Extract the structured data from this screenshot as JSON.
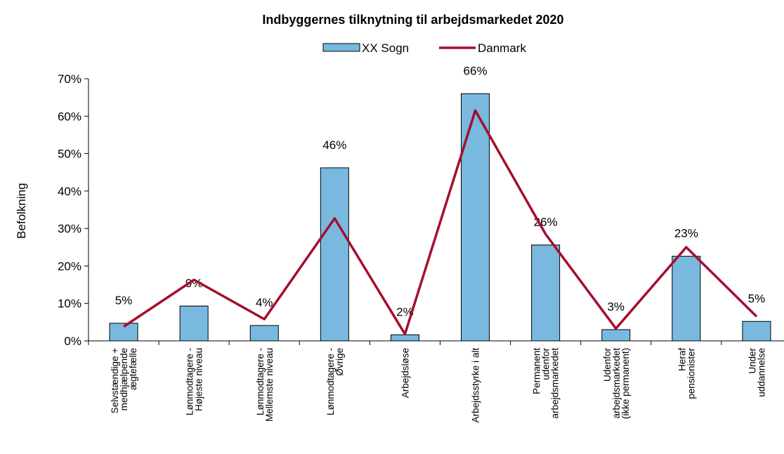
{
  "chart_data": {
    "type": "bar_line",
    "title": "Indbyggernes tilknytning til arbejdsmarkedet 2020",
    "ylabel": "Befolkning",
    "categories": [
      [
        "Selvstændige +",
        "medhjælpende",
        "ægtefælle"
      ],
      [
        "Lønmodtagere -",
        "Højeste niveau"
      ],
      [
        "Lønmodtagere -",
        "Mellemste niveau"
      ],
      [
        "Lønmodtagere -",
        "Øvrige"
      ],
      [
        "Arbejdsløse"
      ],
      [
        "Arbejdsstyrke i alt"
      ],
      [
        "Permanent",
        "udenfor",
        "arbejdsmarkedet"
      ],
      [
        "Udenfor",
        "arbejdsmarkedet",
        "(ikke permanent)"
      ],
      [
        "Heraf",
        "pensionister"
      ],
      [
        "Under",
        "uddannelse"
      ]
    ],
    "series": [
      {
        "name": "XX Sogn",
        "type": "bar",
        "color": "#79b9e0",
        "values": [
          4.7,
          9.3,
          4.1,
          46.2,
          1.6,
          66,
          25.6,
          3.0,
          22.6,
          5.2
        ],
        "value_labels": [
          "5%",
          "9%",
          "4%",
          "46%",
          "2%",
          "66%",
          "26%",
          "3%",
          "23%",
          "5%"
        ]
      },
      {
        "name": "Danmark",
        "type": "line",
        "color": "#a50f2d",
        "values": [
          3.8,
          16.3,
          5.8,
          32.7,
          1.8,
          61.5,
          28.5,
          3.3,
          25.0,
          6.5
        ]
      }
    ],
    "ylim": [
      0,
      70
    ],
    "yticks": [
      {
        "value": 0,
        "label": "0%"
      },
      {
        "value": 10,
        "label": "10%"
      },
      {
        "value": 20,
        "label": "20%"
      },
      {
        "value": 30,
        "label": "30%"
      },
      {
        "value": 40,
        "label": "40%"
      },
      {
        "value": 50,
        "label": "50%"
      },
      {
        "value": 60,
        "label": "60%"
      },
      {
        "value": 70,
        "label": "70%"
      }
    ],
    "legend": "top"
  }
}
